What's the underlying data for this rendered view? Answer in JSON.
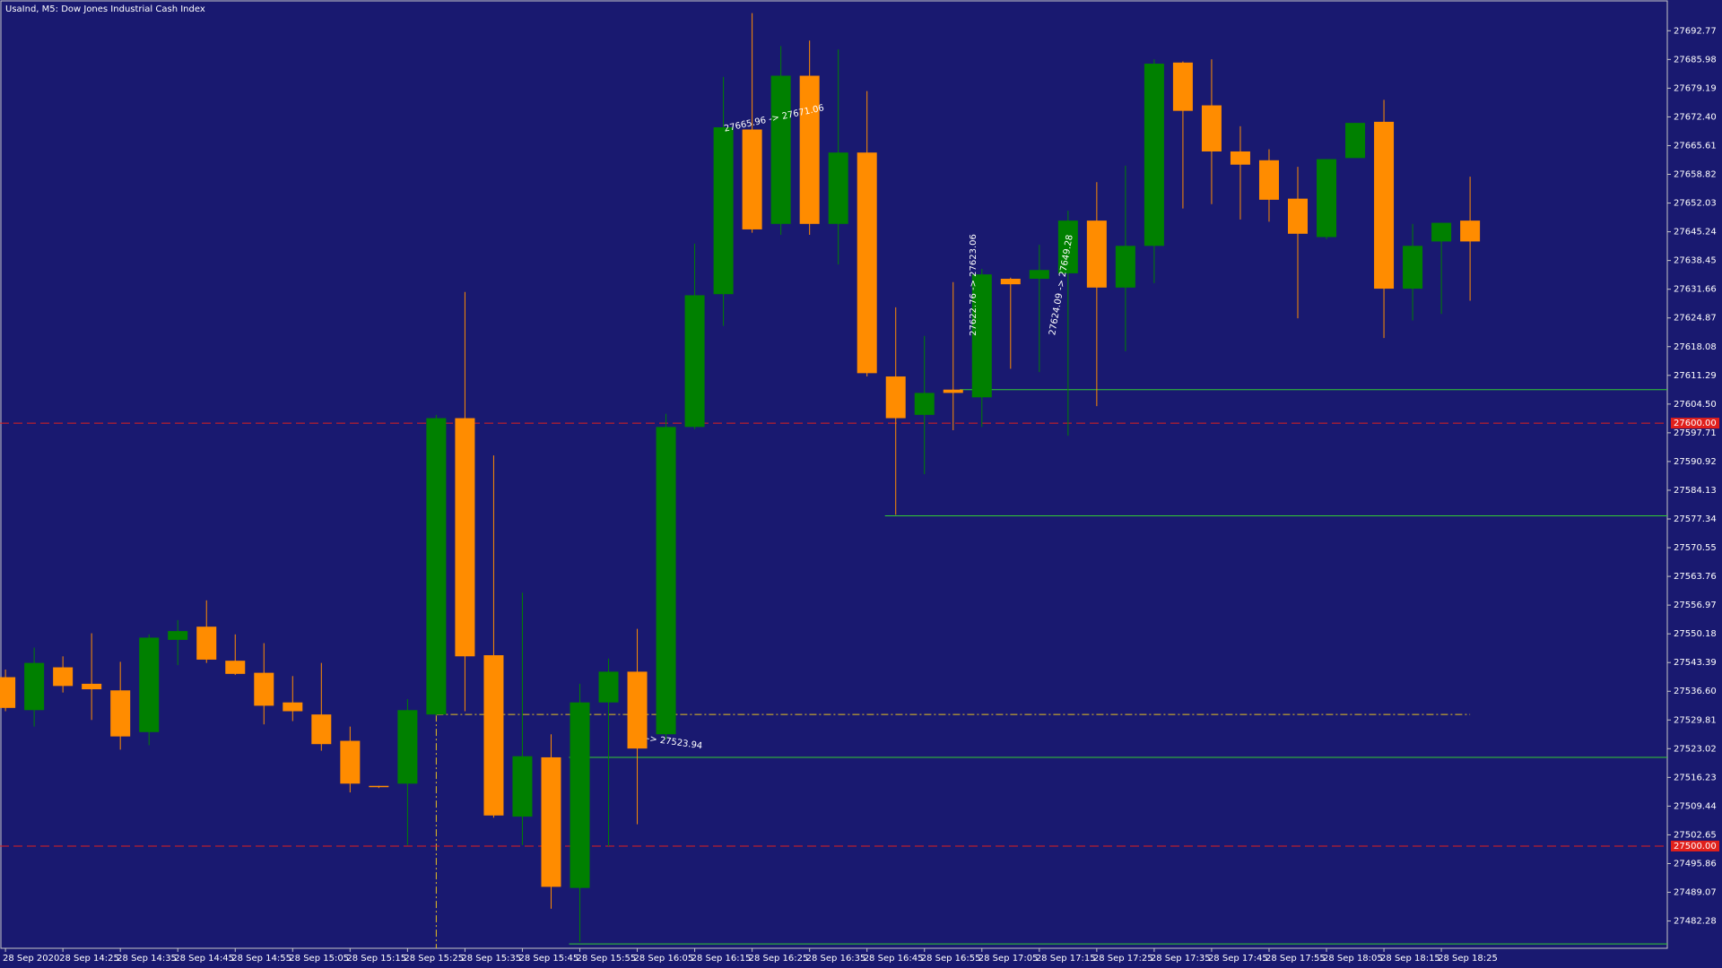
{
  "chart_data": {
    "type": "candlestick",
    "title": "UsaInd, M5:  Dow Jones Industrial Cash Index",
    "categories": [
      "28 Sep 2020",
      null,
      "28 Sep 14:25",
      null,
      "28 Sep 14:35",
      null,
      "28 Sep 14:45",
      null,
      "28 Sep 14:55",
      null,
      "28 Sep 15:05",
      null,
      "28 Sep 15:15",
      null,
      "28 Sep 15:25",
      null,
      "28 Sep 15:35",
      null,
      "28 Sep 15:45",
      null,
      "28 Sep 15:55",
      null,
      "28 Sep 16:05",
      null,
      "28 Sep 16:15",
      null,
      "28 Sep 16:25",
      null,
      "28 Sep 16:35",
      null,
      "28 Sep 16:45",
      null,
      "28 Sep 16:55",
      null,
      "28 Sep 17:05",
      null,
      "28 Sep 17:15",
      null,
      "28 Sep 17:25",
      null,
      "28 Sep 17:35",
      null,
      "28 Sep 17:45",
      null,
      "28 Sep 17:55",
      null,
      "28 Sep 18:05",
      null,
      "28 Sep 18:15",
      null,
      "28 Sep 18:25",
      null
    ],
    "open": [
      27539.93,
      27532.14,
      27542.26,
      27538.37,
      27536.81,
      27526.95,
      27548.75,
      27551.87,
      27543.82,
      27540.97,
      27533.96,
      27531.11,
      27524.88,
      27514.24,
      27514.76,
      27531.11,
      27601.17,
      27545.12,
      27506.97,
      27520.98,
      27490.1,
      27533.96,
      27541.23,
      27526.43,
      27599.09,
      27630.49,
      27669.42,
      27647.1,
      27682.13,
      27647.1,
      27663.97,
      27611.03,
      27601.95,
      27607.92,
      27606.1,
      27634.13,
      27634.13,
      27635.42,
      27647.88,
      27632.05,
      27641.91,
      27685.25,
      27675.13,
      27664.23,
      27662.15,
      27653.07,
      27643.99,
      27662.67,
      27671.24,
      27631.79,
      27642.95,
      27647.88
    ],
    "high": [
      27541.74,
      27546.93,
      27544.86,
      27550.31,
      27543.56,
      27550.05,
      27553.42,
      27558.09,
      27550.05,
      27547.97,
      27540.19,
      27543.3,
      27528.25,
      27514.24,
      27534.74,
      27601.95,
      27631.01,
      27592.35,
      27559.91,
      27526.43,
      27538.37,
      27544.34,
      27551.35,
      27602.21,
      27642.43,
      27681.87,
      27696.93,
      27689.14,
      27690.44,
      27688.36,
      27678.5,
      27627.38,
      27620.63,
      27633.35,
      27636.46,
      27634.39,
      27642.17,
      27650.22,
      27656.96,
      27660.86,
      27686.03,
      27685.51,
      27686.03,
      27670.2,
      27664.75,
      27660.6,
      27662.41,
      27670.98,
      27676.43,
      27647.1,
      27647.36,
      27658.26
    ],
    "low": [
      27531.88,
      27528.25,
      27536.3,
      27529.81,
      27522.8,
      27523.84,
      27542.78,
      27543.3,
      27540.45,
      27528.77,
      27529.55,
      27522.54,
      27512.68,
      27513.72,
      27500.22,
      27530.85,
      27531.88,
      27506.71,
      27500.22,
      27485.17,
      27477.39,
      27499.97,
      27505.16,
      27525.14,
      27598.58,
      27622.97,
      27645.03,
      27644.51,
      27644.51,
      27637.5,
      27611.03,
      27578.33,
      27587.94,
      27598.32,
      27599.09,
      27612.85,
      27612.07,
      27597.02,
      27604.02,
      27617.0,
      27633.09,
      27650.73,
      27651.77,
      27648.14,
      27647.62,
      27624.78,
      27643.47,
      27662.93,
      27620.11,
      27624.27,
      27625.82,
      27628.94
    ],
    "close": [
      27532.66,
      27543.3,
      27537.85,
      27537.07,
      27525.92,
      27549.27,
      27550.83,
      27544.08,
      27540.71,
      27533.18,
      27531.88,
      27524.1,
      27514.76,
      27513.98,
      27532.14,
      27601.17,
      27544.86,
      27507.23,
      27521.24,
      27490.36,
      27533.96,
      27541.23,
      27523.06,
      27599.09,
      27630.23,
      27669.94,
      27645.8,
      27682.13,
      27647.1,
      27663.97,
      27611.81,
      27601.17,
      27607.14,
      27607.14,
      27635.16,
      27632.83,
      27636.2,
      27647.88,
      27632.05,
      27641.91,
      27684.99,
      27673.83,
      27664.23,
      27661.11,
      27652.81,
      27644.77,
      27662.41,
      27670.98,
      27631.79,
      27641.91,
      27647.36,
      27642.95
    ],
    "up_color": "#008000",
    "down_color": "#ff8c00",
    "background": "#191970",
    "ylim": [
      27475.83,
      27700.04
    ],
    "yticks": [
      27692.77,
      27685.98,
      27679.19,
      {
        "value": 27672.4,
        "label": "27672.40"
      },
      27665.61,
      27658.82,
      27652.03,
      27645.24,
      27638.45,
      27631.66,
      27624.87,
      27618.08,
      27611.29,
      {
        "value": 27604.5,
        "label": "27604.50"
      },
      27597.71,
      27590.92,
      27584.13,
      27577.34,
      27570.55,
      27563.76,
      27556.97,
      27550.18,
      27543.39,
      {
        "value": 27536.6,
        "label": "27536.60"
      },
      27529.81,
      27523.02,
      27516.23,
      27509.44,
      27502.65,
      27495.86,
      27489.07,
      27482.28
    ],
    "price_lines": [
      {
        "value": 27600,
        "label": "27600.00"
      },
      {
        "value": 27500,
        "label": "27500.00"
      }
    ],
    "price_line_color": "#e0201c",
    "levels": [
      27607.92,
      27578.07,
      27520.98,
      27476.87
    ],
    "level_color": "#33cc33",
    "entry_level": 27531.11,
    "entry_color": "#e6c020",
    "annotations": [
      "27665.96 -> 27671.06",
      "27622.76 -> 27623.06",
      "27624.09 -> 27649.28",
      "-> 27523.94"
    ]
  }
}
